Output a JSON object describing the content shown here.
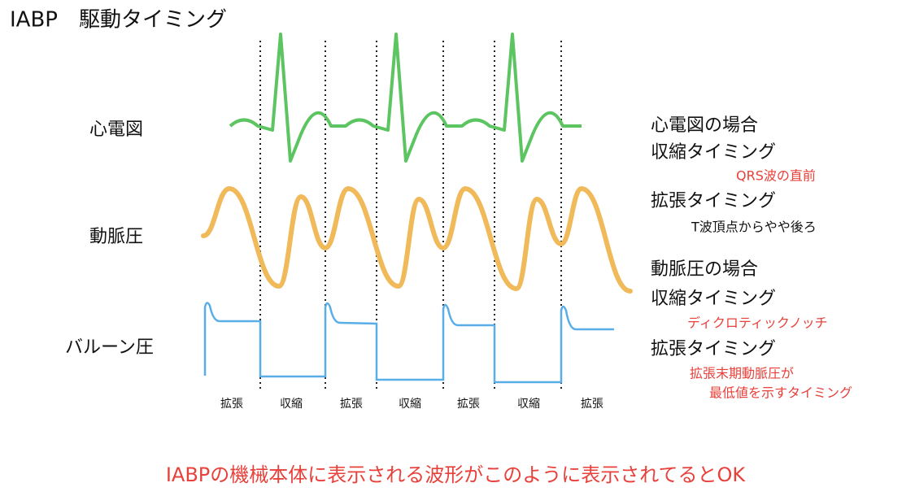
{
  "title": "IABP　駆動タイミング",
  "rows": [
    "心電図",
    "動脈圧",
    "バルーン圧"
  ],
  "phases": [
    "拡張",
    "収縮",
    "拡張",
    "収縮",
    "拡張",
    "収縮",
    "拡張"
  ],
  "notes": [
    {
      "heading": "心電図の場合",
      "systole": "収縮タイミング",
      "systole_note": "QRS波の直前",
      "diastole": "拡張タイミング",
      "diastole_note": "T波頂点からやや後ろ"
    },
    {
      "heading": "動脈圧の場合",
      "systole": "収縮タイミング",
      "systole_note": "ディクロティックノッチ",
      "diastole": "拡張タイミング",
      "diastole_note": [
        "拡張末期動脈圧が",
        "最低値を示すタイミング"
      ]
    }
  ],
  "footer": "IABPの機械本体に表示される波形がこのように表示されてるとOK"
}
